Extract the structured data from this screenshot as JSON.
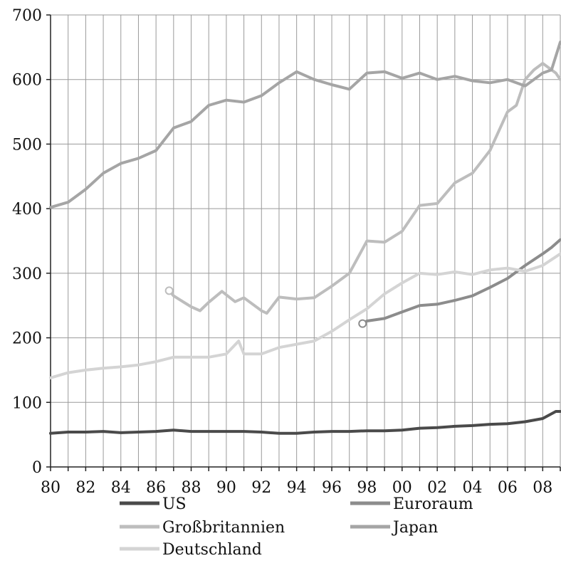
{
  "chart_data": {
    "type": "line",
    "title": "",
    "xlabel": "",
    "ylabel": "",
    "xlim": [
      1980,
      2009
    ],
    "ylim": [
      0,
      700
    ],
    "grid": true,
    "legend_position": "bottom",
    "x_tick_labels": [
      "80",
      "82",
      "84",
      "86",
      "88",
      "90",
      "92",
      "94",
      "96",
      "98",
      "00",
      "02",
      "04",
      "06",
      "08"
    ],
    "x_tick_years": [
      1980,
      1982,
      1984,
      1986,
      1988,
      1990,
      1992,
      1994,
      1996,
      1998,
      2000,
      2002,
      2004,
      2006,
      2008
    ],
    "y_tick_labels": [
      "0",
      "100",
      "200",
      "300",
      "400",
      "500",
      "600",
      "700"
    ],
    "y_tick_values": [
      0,
      100,
      200,
      300,
      400,
      500,
      600,
      700
    ],
    "series": [
      {
        "name": "US",
        "color": "#4a4a4a",
        "x": [
          1980,
          1981,
          1982,
          1983,
          1984,
          1985,
          1986,
          1987,
          1988,
          1989,
          1990,
          1991,
          1992,
          1993,
          1994,
          1995,
          1996,
          1997,
          1998,
          1999,
          2000,
          2001,
          2002,
          2003,
          2004,
          2005,
          2006,
          2007,
          2008,
          2008.75,
          2009
        ],
        "y": [
          52,
          54,
          54,
          55,
          53,
          54,
          55,
          57,
          55,
          55,
          55,
          55,
          54,
          52,
          52,
          54,
          55,
          55,
          56,
          56,
          57,
          60,
          61,
          63,
          64,
          66,
          67,
          70,
          75,
          86,
          86
        ]
      },
      {
        "name": "Euroraum",
        "color": "#8c8c8c",
        "start_marker": true,
        "x": [
          1997.75,
          1998,
          1999,
          2000,
          2001,
          2002,
          2003,
          2004,
          2005,
          2006,
          2007,
          2008,
          2008.5,
          2009
        ],
        "y": [
          222,
          226,
          230,
          240,
          250,
          252,
          258,
          265,
          278,
          292,
          312,
          330,
          340,
          352
        ]
      },
      {
        "name": "Großbritannien",
        "color": "#bdbdbd",
        "start_marker": true,
        "x": [
          1986.75,
          1987,
          1988,
          1988.5,
          1989,
          1989.75,
          1990.5,
          1991,
          1992,
          1992.3,
          1993,
          1994,
          1995,
          1996,
          1997,
          1998,
          1999,
          2000,
          2001,
          2002,
          2003,
          2004,
          2005,
          2006,
          2006.5,
          2007,
          2007.5,
          2008,
          2008.75,
          2009
        ],
        "y": [
          273,
          265,
          248,
          242,
          255,
          272,
          256,
          262,
          242,
          238,
          263,
          260,
          262,
          280,
          300,
          350,
          348,
          365,
          405,
          408,
          440,
          455,
          490,
          550,
          560,
          600,
          615,
          625,
          610,
          600
        ]
      },
      {
        "name": "Japan",
        "color": "#a5a5a5",
        "x": [
          1980,
          1981,
          1982,
          1983,
          1984,
          1985,
          1986,
          1987,
          1988,
          1989,
          1990,
          1991,
          1992,
          1993,
          1994,
          1995,
          1996,
          1997,
          1998,
          1999,
          2000,
          2001,
          2002,
          2003,
          2004,
          2005,
          2006,
          2007,
          2008,
          2008.5,
          2009
        ],
        "y": [
          402,
          410,
          430,
          455,
          470,
          478,
          490,
          525,
          535,
          560,
          568,
          565,
          575,
          595,
          612,
          600,
          592,
          585,
          610,
          612,
          602,
          610,
          600,
          605,
          598,
          595,
          600,
          590,
          610,
          615,
          658
        ]
      },
      {
        "name": "Deutschland",
        "color": "#d4d4d4",
        "x": [
          1980,
          1981,
          1982,
          1983,
          1984,
          1985,
          1986,
          1987,
          1988,
          1989,
          1990,
          1990.7,
          1991,
          1992,
          1993,
          1994,
          1995,
          1996,
          1997,
          1998,
          1999,
          2000,
          2001,
          2002,
          2003,
          2004,
          2005,
          2006,
          2007,
          2008,
          2009
        ],
        "y": [
          138,
          146,
          150,
          153,
          155,
          158,
          163,
          170,
          170,
          170,
          175,
          195,
          175,
          175,
          185,
          190,
          195,
          210,
          228,
          245,
          268,
          285,
          300,
          298,
          302,
          298,
          305,
          308,
          303,
          312,
          330
        ]
      }
    ]
  }
}
